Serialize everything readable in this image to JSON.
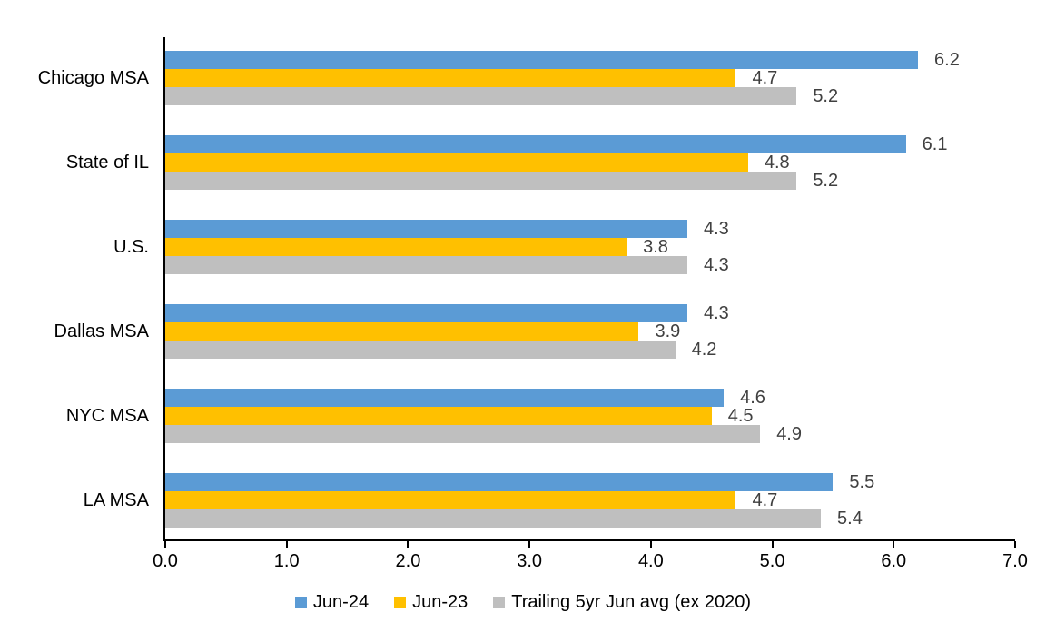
{
  "chart_data": {
    "type": "bar",
    "orientation": "horizontal",
    "title": "",
    "xlabel": "",
    "ylabel": "",
    "xlim": [
      0,
      7
    ],
    "x_ticks": [
      "0.0",
      "1.0",
      "2.0",
      "3.0",
      "4.0",
      "5.0",
      "6.0",
      "7.0"
    ],
    "grid": false,
    "legend_position": "bottom",
    "categories": [
      "Chicago MSA",
      "State of IL",
      "U.S.",
      "Dallas MSA",
      "NYC MSA",
      "LA MSA"
    ],
    "series": [
      {
        "name": "Jun-24",
        "color": "#5B9BD5",
        "values": [
          6.2,
          6.1,
          4.3,
          4.3,
          4.6,
          5.5
        ]
      },
      {
        "name": "Jun-23",
        "color": "#FFC000",
        "values": [
          4.7,
          4.8,
          3.8,
          3.9,
          4.5,
          4.7
        ]
      },
      {
        "name": "Trailing 5yr Jun avg (ex 2020)",
        "color": "#BFBFBF",
        "values": [
          5.2,
          5.2,
          4.3,
          4.2,
          4.9,
          5.4
        ]
      }
    ],
    "data_labels": [
      [
        "6.2",
        "4.7",
        "5.2"
      ],
      [
        "6.1",
        "4.8",
        "5.2"
      ],
      [
        "4.3",
        "3.8",
        "4.3"
      ],
      [
        "4.3",
        "3.9",
        "4.2"
      ],
      [
        "4.6",
        "4.5",
        "4.9"
      ],
      [
        "5.5",
        "4.7",
        "5.4"
      ]
    ],
    "colors": {
      "axis_line": "#000000",
      "data_label_text": "#404040",
      "axis_text": "#000000"
    }
  }
}
